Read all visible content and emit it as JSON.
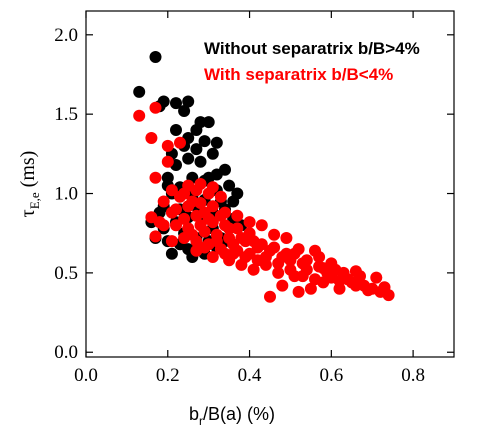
{
  "chart_data": {
    "type": "scatter",
    "xlabel": "b",
    "xlabel_sub": "r",
    "xlabel_suffix": "/B(a) (%)",
    "ylabel": "τ",
    "ylabel_sub": "E,e",
    "ylabel_suffix": " (ms)",
    "xlim": [
      0.0,
      0.9
    ],
    "ylim": [
      -0.03,
      2.15
    ],
    "x_ticks": [
      "0.0",
      "0.2",
      "0.4",
      "0.6",
      "0.8"
    ],
    "x_tick_values": [
      0.0,
      0.2,
      0.4,
      0.6,
      0.8
    ],
    "y_ticks": [
      "0.0",
      "0.5",
      "1.0",
      "1.5",
      "2.0"
    ],
    "y_tick_values": [
      0.0,
      0.5,
      1.0,
      1.5,
      2.0
    ],
    "legend_placement": "top-right",
    "grid": false,
    "series": [
      {
        "name": "Without separatrix b/B>4%",
        "color": "#000000",
        "points": [
          [
            0.17,
            1.86
          ],
          [
            0.13,
            1.64
          ],
          [
            0.19,
            1.58
          ],
          [
            0.22,
            1.57
          ],
          [
            0.25,
            1.58
          ],
          [
            0.28,
            1.45
          ],
          [
            0.24,
            1.52
          ],
          [
            0.27,
            1.4
          ],
          [
            0.3,
            1.45
          ],
          [
            0.25,
            1.35
          ],
          [
            0.29,
            1.33
          ],
          [
            0.32,
            1.32
          ],
          [
            0.22,
            1.4
          ],
          [
            0.18,
            1.55
          ],
          [
            0.21,
            1.25
          ],
          [
            0.25,
            1.22
          ],
          [
            0.28,
            1.2
          ],
          [
            0.31,
            1.25
          ],
          [
            0.34,
            1.15
          ],
          [
            0.35,
            1.05
          ],
          [
            0.37,
            1.0
          ],
          [
            0.26,
            1.1
          ],
          [
            0.29,
            1.08
          ],
          [
            0.32,
            1.02
          ],
          [
            0.2,
            1.1
          ],
          [
            0.23,
            1.0
          ],
          [
            0.19,
            0.92
          ],
          [
            0.22,
            0.82
          ],
          [
            0.24,
            0.75
          ],
          [
            0.27,
            0.72
          ],
          [
            0.3,
            0.7
          ],
          [
            0.33,
            0.72
          ],
          [
            0.2,
            0.7
          ],
          [
            0.21,
            0.62
          ],
          [
            0.25,
            0.65
          ],
          [
            0.29,
            0.62
          ],
          [
            0.32,
            0.66
          ],
          [
            0.35,
            0.78
          ],
          [
            0.17,
            0.72
          ],
          [
            0.16,
            0.82
          ],
          [
            0.19,
            0.78
          ],
          [
            0.23,
            0.9
          ],
          [
            0.27,
            0.92
          ],
          [
            0.31,
            0.88
          ],
          [
            0.34,
            0.9
          ],
          [
            0.36,
            0.84
          ],
          [
            0.38,
            0.8
          ],
          [
            0.29,
            0.96
          ],
          [
            0.26,
            0.98
          ],
          [
            0.23,
            1.04
          ],
          [
            0.21,
            1.0
          ],
          [
            0.33,
            0.95
          ],
          [
            0.3,
            1.1
          ],
          [
            0.27,
            1.28
          ],
          [
            0.24,
            1.3
          ],
          [
            0.22,
            1.18
          ],
          [
            0.28,
            0.85
          ],
          [
            0.25,
            0.85
          ],
          [
            0.31,
            0.78
          ],
          [
            0.34,
            0.7
          ],
          [
            0.26,
            0.6
          ],
          [
            0.23,
            0.68
          ],
          [
            0.18,
            0.88
          ],
          [
            0.32,
            1.12
          ],
          [
            0.2,
            1.05
          ],
          [
            0.36,
            0.95
          ]
        ]
      },
      {
        "name": "With separatrix b/B<4%",
        "color": "#ff0000",
        "points": [
          [
            0.13,
            1.49
          ],
          [
            0.17,
            1.54
          ],
          [
            0.16,
            1.35
          ],
          [
            0.2,
            1.2
          ],
          [
            0.2,
            1.3
          ],
          [
            0.23,
            1.32
          ],
          [
            0.17,
            1.1
          ],
          [
            0.21,
            1.02
          ],
          [
            0.24,
            1.0
          ],
          [
            0.27,
            1.02
          ],
          [
            0.3,
            1.0
          ],
          [
            0.33,
            0.98
          ],
          [
            0.16,
            0.85
          ],
          [
            0.19,
            0.8
          ],
          [
            0.22,
            0.8
          ],
          [
            0.25,
            0.78
          ],
          [
            0.28,
            0.8
          ],
          [
            0.31,
            0.82
          ],
          [
            0.34,
            0.8
          ],
          [
            0.37,
            0.78
          ],
          [
            0.4,
            0.75
          ],
          [
            0.17,
            0.73
          ],
          [
            0.21,
            0.7
          ],
          [
            0.24,
            0.72
          ],
          [
            0.27,
            0.7
          ],
          [
            0.3,
            0.68
          ],
          [
            0.33,
            0.65
          ],
          [
            0.36,
            0.68
          ],
          [
            0.39,
            0.7
          ],
          [
            0.42,
            0.66
          ],
          [
            0.45,
            0.64
          ],
          [
            0.48,
            0.6
          ],
          [
            0.51,
            0.62
          ],
          [
            0.54,
            0.58
          ],
          [
            0.57,
            0.6
          ],
          [
            0.6,
            0.56
          ],
          [
            0.25,
            0.92
          ],
          [
            0.28,
            0.94
          ],
          [
            0.31,
            0.92
          ],
          [
            0.34,
            0.88
          ],
          [
            0.37,
            0.86
          ],
          [
            0.4,
            0.82
          ],
          [
            0.43,
            0.8
          ],
          [
            0.46,
            0.74
          ],
          [
            0.49,
            0.72
          ],
          [
            0.52,
            0.65
          ],
          [
            0.35,
            0.58
          ],
          [
            0.38,
            0.55
          ],
          [
            0.41,
            0.52
          ],
          [
            0.44,
            0.55
          ],
          [
            0.47,
            0.5
          ],
          [
            0.5,
            0.52
          ],
          [
            0.53,
            0.48
          ],
          [
            0.56,
            0.46
          ],
          [
            0.59,
            0.5
          ],
          [
            0.62,
            0.45
          ],
          [
            0.65,
            0.44
          ],
          [
            0.68,
            0.42
          ],
          [
            0.7,
            0.4
          ],
          [
            0.72,
            0.38
          ],
          [
            0.74,
            0.36
          ],
          [
            0.71,
            0.47
          ],
          [
            0.67,
            0.48
          ],
          [
            0.63,
            0.5
          ],
          [
            0.55,
            0.4
          ],
          [
            0.52,
            0.38
          ],
          [
            0.45,
            0.35
          ],
          [
            0.48,
            0.42
          ],
          [
            0.58,
            0.53
          ],
          [
            0.56,
            0.64
          ],
          [
            0.61,
            0.52
          ],
          [
            0.66,
            0.42
          ],
          [
            0.29,
            0.88
          ],
          [
            0.27,
            0.86
          ],
          [
            0.24,
            0.84
          ],
          [
            0.22,
            0.9
          ],
          [
            0.26,
            0.95
          ],
          [
            0.29,
            0.76
          ],
          [
            0.32,
            0.74
          ],
          [
            0.35,
            0.72
          ],
          [
            0.3,
            0.84
          ],
          [
            0.33,
            0.86
          ],
          [
            0.36,
            0.62
          ],
          [
            0.39,
            0.6
          ],
          [
            0.42,
            0.58
          ],
          [
            0.19,
            0.95
          ],
          [
            0.23,
            0.98
          ],
          [
            0.26,
            0.74
          ],
          [
            0.32,
            0.7
          ],
          [
            0.29,
            0.66
          ],
          [
            0.27,
            0.64
          ],
          [
            0.31,
            0.6
          ],
          [
            0.34,
            0.62
          ],
          [
            0.37,
            0.64
          ],
          [
            0.4,
            0.62
          ],
          [
            0.43,
            0.68
          ],
          [
            0.46,
            0.66
          ],
          [
            0.49,
            0.62
          ],
          [
            0.53,
            0.56
          ],
          [
            0.57,
            0.54
          ],
          [
            0.6,
            0.47
          ],
          [
            0.64,
            0.46
          ],
          [
            0.69,
            0.39
          ],
          [
            0.73,
            0.41
          ],
          [
            0.44,
            0.6
          ],
          [
            0.5,
            0.58
          ],
          [
            0.38,
            0.72
          ],
          [
            0.41,
            0.7
          ],
          [
            0.25,
            1.05
          ],
          [
            0.28,
            1.06
          ],
          [
            0.31,
            1.04
          ],
          [
            0.21,
            0.88
          ],
          [
            0.18,
            0.82
          ],
          [
            0.35,
            0.78
          ],
          [
            0.47,
            0.56
          ],
          [
            0.54,
            0.52
          ],
          [
            0.62,
            0.4
          ],
          [
            0.66,
            0.51
          ],
          [
            0.58,
            0.44
          ],
          [
            0.51,
            0.48
          ]
        ]
      }
    ]
  }
}
